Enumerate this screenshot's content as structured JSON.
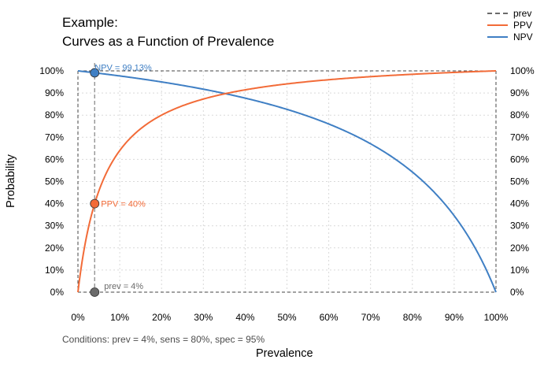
{
  "title": [
    "Example:",
    "Curves as a Function of Prevalence"
  ],
  "caption": "Conditions: prev = 4%, sens = 80%, spec = 95%",
  "colors": {
    "prev": "#6b6b6b",
    "ppv": "#f26b38",
    "npv": "#3f7fc4",
    "grid": "#d9d9d9"
  },
  "legend": [
    {
      "name": "prev",
      "style": "dashed"
    },
    {
      "name": "PPV",
      "style": "solid"
    },
    {
      "name": "NPV",
      "style": "solid"
    }
  ],
  "chart_data": {
    "type": "line",
    "xlabel": "Prevalence",
    "ylabel": "Probability",
    "xlim": [
      0,
      1
    ],
    "ylim": [
      0,
      1
    ],
    "grid": true,
    "legend_position": "top-right",
    "x_ticks": [
      "0%",
      "10%",
      "20%",
      "30%",
      "40%",
      "50%",
      "60%",
      "70%",
      "80%",
      "90%",
      "100%"
    ],
    "y_ticks": [
      "0%",
      "10%",
      "20%",
      "30%",
      "40%",
      "50%",
      "60%",
      "70%",
      "80%",
      "90%",
      "100%"
    ],
    "conditions": {
      "prev": 0.04,
      "sens": 0.8,
      "spec": 0.95
    },
    "series": [
      {
        "name": "PPV",
        "x": [
          0,
          0.01,
          0.02,
          0.04,
          0.06,
          0.1,
          0.15,
          0.2,
          0.3,
          0.4,
          0.5,
          0.6,
          0.7,
          0.8,
          0.9,
          1.0
        ],
        "y": [
          0,
          0.139,
          0.246,
          0.4,
          0.505,
          0.64,
          0.738,
          0.8,
          0.873,
          0.914,
          0.941,
          0.96,
          0.974,
          0.985,
          0.993,
          1.0
        ]
      },
      {
        "name": "NPV",
        "x": [
          0,
          0.04,
          0.1,
          0.2,
          0.3,
          0.4,
          0.5,
          0.6,
          0.7,
          0.8,
          0.9,
          0.95,
          1.0
        ],
        "y": [
          1.0,
          0.991,
          0.977,
          0.95,
          0.917,
          0.877,
          0.826,
          0.76,
          0.671,
          0.543,
          0.345,
          0.2,
          0
        ]
      }
    ],
    "points": [
      {
        "name": "prev",
        "x": 0.04,
        "y": 0,
        "label": "prev = 4%"
      },
      {
        "name": "PPV",
        "x": 0.04,
        "y": 0.4,
        "label": "PPV = 40%"
      },
      {
        "name": "NPV",
        "x": 0.04,
        "y": 0.9913,
        "label": "NPV = 99.13%"
      }
    ],
    "prev_line": {
      "x": 0.04
    }
  }
}
